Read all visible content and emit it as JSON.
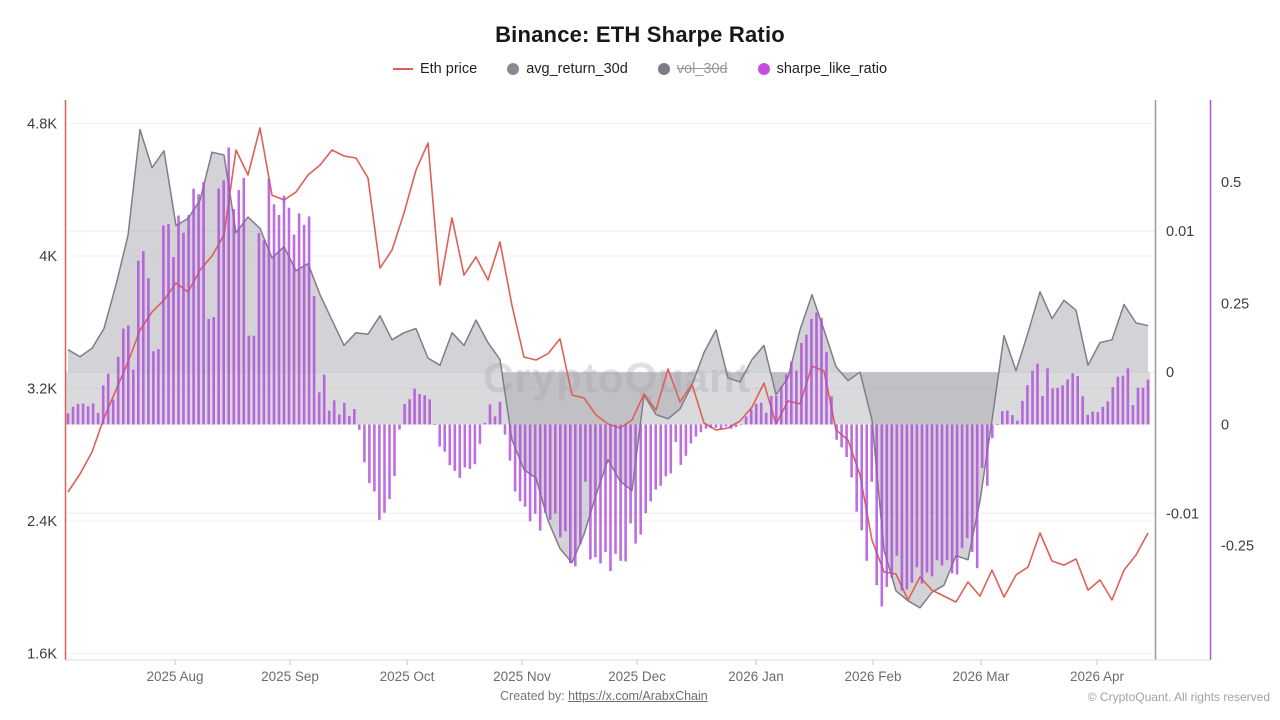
{
  "title": "Binance: ETH Sharpe Ratio",
  "watermark": "CryptoQuant",
  "legend": [
    {
      "label": "Eth price",
      "swatch": "line",
      "color": "#dd6156",
      "disabled": false
    },
    {
      "label": "avg_return_30d",
      "swatch": "dot",
      "color": "#8b8a94",
      "disabled": false
    },
    {
      "label": "vol_30d",
      "swatch": "dot",
      "color": "#7b7a85",
      "disabled": true
    },
    {
      "label": "sharpe_like_ratio",
      "swatch": "dot",
      "color": "#c24fe0",
      "disabled": false
    }
  ],
  "footer": {
    "created_prefix": "Created by: ",
    "link": "https://x.com/ArabxChain",
    "copyright": "© CryptoQuant. All rights reserved"
  },
  "chart_data": {
    "type": "mixed",
    "x_domain": [
      "2025-07-17",
      "2026-04-28"
    ],
    "sampling": "91 uniform samples across x_domain",
    "months": {
      "labels": [
        "2025 Aug",
        "2025 Sep",
        "2025 Oct",
        "2025 Nov",
        "2025 Dec",
        "2026 Jan",
        "2026 Feb",
        "2026 Mar",
        "2026 Apr"
      ],
      "positions": [
        0.0991,
        0.2056,
        0.3139,
        0.4204,
        0.5269,
        0.637,
        0.7454,
        0.8454,
        0.9528
      ]
    },
    "axes": {
      "price": {
        "side": "left",
        "color": "#dd6156",
        "tick_labels": [
          "4.8K",
          "4K",
          "3.2K",
          "2.4K",
          "1.6K"
        ],
        "tick_values": [
          4800,
          4000,
          3200,
          2400,
          1600
        ],
        "range": [
          1561,
          4942
        ]
      },
      "return": {
        "side": "right",
        "color": "#9b9aa3",
        "tick_labels": [
          "0.01",
          "0",
          "-0.01"
        ],
        "tick_values": [
          0.01,
          0,
          -0.01
        ],
        "range": [
          -0.0204,
          0.0193
        ]
      },
      "sharpe": {
        "side": "right-outer",
        "color": "#b44fd8",
        "tick_labels": [
          "0.5",
          "0.25",
          "0",
          "-0.25"
        ],
        "tick_values": [
          0.5,
          0.25,
          0,
          -0.25
        ],
        "range": [
          -0.4856,
          0.6691
        ]
      }
    },
    "zero_band": {
      "from_axis": "return",
      "to_axis": "sharpe",
      "fill": "rgba(167,166,174,0.42)"
    },
    "series": [
      {
        "name": "Eth price",
        "type": "line",
        "axis": "price",
        "color": "#dd6156",
        "values": [
          2575,
          2684,
          2817,
          3022,
          3191,
          3360,
          3553,
          3662,
          3734,
          3837,
          3783,
          3915,
          4000,
          4127,
          4640,
          4489,
          4773,
          4368,
          4338,
          4386,
          4489,
          4549,
          4640,
          4604,
          4592,
          4471,
          3928,
          4036,
          4260,
          4519,
          4682,
          3825,
          4230,
          3885,
          3994,
          3855,
          4085,
          3700,
          3390,
          3372,
          3410,
          3500,
          3161,
          3143,
          3040,
          2986,
          2962,
          3010,
          3167,
          3070,
          3318,
          3119,
          3227,
          2992,
          2950,
          2962,
          3004,
          3088,
          3233,
          2986,
          3125,
          3107,
          3336,
          3306,
          2950,
          2889,
          2678,
          2285,
          2092,
          2080,
          1923,
          2062,
          1983,
          1947,
          1911,
          2032,
          1947,
          2104,
          1941,
          2074,
          2122,
          2328,
          2159,
          2134,
          2171,
          1983,
          2044,
          1923,
          2104,
          2195,
          2328
        ]
      },
      {
        "name": "avg_return_30d",
        "type": "area",
        "axis": "return",
        "color": "#7f7e88",
        "fill": "rgba(167,166,174,0.5)",
        "values": [
          0.0016,
          0.0011,
          0.0017,
          0.0031,
          0.0062,
          0.0097,
          0.0172,
          0.0145,
          0.0157,
          0.0104,
          0.0109,
          0.0122,
          0.0156,
          0.0154,
          0.0099,
          0.011,
          0.0102,
          0.0081,
          0.0089,
          0.0072,
          0.0077,
          0.0055,
          0.0037,
          0.0019,
          0.0028,
          0.0027,
          0.004,
          0.0023,
          0.0028,
          0.0031,
          0.001,
          0.0005,
          0.0028,
          0.0019,
          0.0037,
          0.0021,
          0.0009,
          -0.0048,
          -0.0069,
          -0.0075,
          -0.0105,
          -0.0125,
          -0.0135,
          -0.0115,
          -0.0087,
          -0.0062,
          -0.0077,
          -0.0084,
          -0.0016,
          -0.003,
          -0.0033,
          -0.0026,
          -0.0009,
          0.0014,
          0.003,
          -0.0004,
          -0.0007,
          0.0009,
          0.0019,
          -0.0016,
          -0.0004,
          0.003,
          0.0055,
          0.003,
          0.0004,
          -0.0006,
          0,
          -0.0034,
          -0.0126,
          -0.0155,
          -0.0162,
          -0.0167,
          -0.0156,
          -0.0151,
          -0.013,
          -0.0133,
          -0.0091,
          -0.0034,
          0.0026,
          0.0001,
          0.0028,
          0.0057,
          0.0038,
          0.0051,
          0.0044,
          0.0005,
          0.0021,
          0.0023,
          0.0048,
          0.0035,
          0.0033
        ]
      },
      {
        "name": "vol_30d",
        "type": "line",
        "axis": "return",
        "color": "#7b7a85",
        "disabled": true,
        "values": []
      },
      {
        "name": "sharpe_like_ratio",
        "type": "bar",
        "axis": "sharpe",
        "color": "#ad4ad8",
        "opacity": 0.8,
        "values": [
          0.03,
          0.048,
          0.048,
          0.085,
          0.157,
          0.26,
          0.364,
          0.405,
          0.436,
          0.467,
          0.55,
          0.57,
          0.601,
          0.612,
          0.525,
          0.508,
          0.488,
          0.539,
          0.539,
          0.483,
          0.488,
          0.157,
          0.054,
          0.058,
          0.033,
          -0.13,
          -0.21,
          -0.16,
          0.05,
          0.09,
          0.07,
          -0.05,
          -0.1,
          -0.12,
          -0.08,
          0.04,
          0.05,
          -0.12,
          -0.194,
          -0.236,
          -0.194,
          -0.267,
          -0.298,
          -0.318,
          -0.308,
          -0.329,
          -0.308,
          -0.267,
          -0.225,
          -0.153,
          -0.112,
          -0.091,
          -0.039,
          -0.012,
          -0.008,
          -0.012,
          -0.004,
          0.037,
          0.064,
          0.074,
          0.126,
          0.157,
          0.26,
          0.24,
          -0.029,
          -0.091,
          -0.236,
          -0.318,
          -0.421,
          -0.36,
          -0.349,
          -0.36,
          -0.339,
          -0.308,
          -0.318,
          -0.308,
          -0.298,
          -0.033,
          0.043,
          0.012,
          0.095,
          0.178,
          0.085,
          0.085,
          0.136,
          0.023,
          0.033,
          0.074,
          0.136,
          0.099,
          0.095
        ]
      }
    ]
  }
}
